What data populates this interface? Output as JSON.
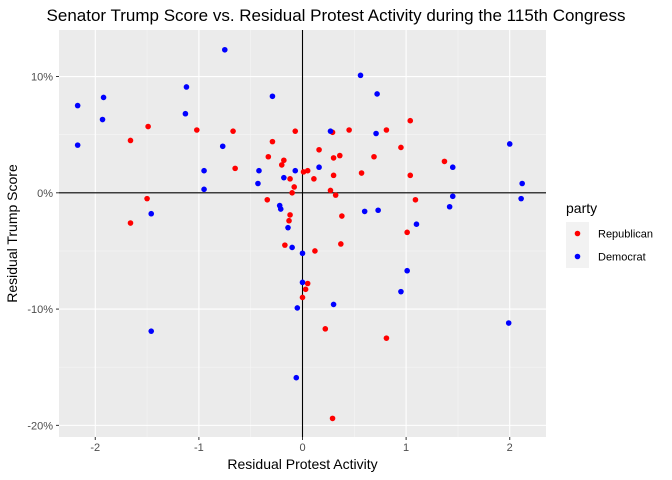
{
  "colors": {
    "panel_bg": "#ebebeb",
    "grid_major": "#ffffff",
    "grid_minor": "#f5f5f5",
    "ref_line": "#000000",
    "republican": "#ff0000",
    "democrat": "#0000ff",
    "legend_key_bg": "#f2f2f2"
  },
  "chart_data": {
    "type": "scatter",
    "title": "Senator Trump Score vs. Residual Protest Activity during the 115th Congress",
    "xlabel": "Residual Protest Activity",
    "ylabel": "Residual Trump Score",
    "xlim": [
      -2.35,
      2.35
    ],
    "ylim": [
      -0.21,
      0.14
    ],
    "x_ticks": [
      -2,
      -1,
      0,
      1,
      2
    ],
    "x_tick_labels": [
      "-2",
      "-1",
      "0",
      "1",
      "2"
    ],
    "y_ticks": [
      -0.2,
      -0.1,
      0,
      0.1
    ],
    "y_tick_labels": [
      "-20%",
      "-10%",
      "0%",
      "10%"
    ],
    "grid": true,
    "reference_lines": {
      "x": 0,
      "y": 0
    },
    "legend": {
      "title": "party",
      "placement": "right"
    },
    "series": [
      {
        "name": "Republican",
        "color": "#ff0000",
        "points": [
          [
            -1.66,
            0.045
          ],
          [
            -1.49,
            0.057
          ],
          [
            -1.5,
            -0.005
          ],
          [
            -1.66,
            -0.026
          ],
          [
            -1.02,
            0.054
          ],
          [
            -0.67,
            0.053
          ],
          [
            -0.65,
            0.021
          ],
          [
            -0.33,
            0.031
          ],
          [
            -0.29,
            0.044
          ],
          [
            -0.34,
            -0.006
          ],
          [
            -0.18,
            0.028
          ],
          [
            -0.2,
            0.024
          ],
          [
            -0.17,
            -0.045
          ],
          [
            -0.12,
            0.012
          ],
          [
            -0.1,
            0.0
          ],
          [
            -0.12,
            -0.019
          ],
          [
            -0.08,
            0.005
          ],
          [
            -0.07,
            0.053
          ],
          [
            -0.13,
            -0.024
          ],
          [
            0.01,
            0.018
          ],
          [
            0.05,
            0.019
          ],
          [
            0.11,
            0.012
          ],
          [
            0.16,
            0.037
          ],
          [
            0.29,
            0.052
          ],
          [
            0.3,
            0.03
          ],
          [
            0.36,
            0.032
          ],
          [
            0.45,
            0.054
          ],
          [
            0.3,
            0.015
          ],
          [
            0.27,
            0.002
          ],
          [
            0.32,
            -0.002
          ],
          [
            0.38,
            -0.02
          ],
          [
            0.37,
            -0.044
          ],
          [
            0.12,
            -0.05
          ],
          [
            0.57,
            0.017
          ],
          [
            0.69,
            0.031
          ],
          [
            0.81,
            0.054
          ],
          [
            0.95,
            0.039
          ],
          [
            1.04,
            0.062
          ],
          [
            1.04,
            0.015
          ],
          [
            1.09,
            -0.006
          ],
          [
            1.01,
            -0.034
          ],
          [
            1.37,
            0.027
          ],
          [
            0.03,
            -0.083
          ],
          [
            0.05,
            -0.078
          ],
          [
            0.0,
            -0.09
          ],
          [
            0.22,
            -0.117
          ],
          [
            0.81,
            -0.125
          ],
          [
            0.29,
            -0.194
          ]
        ]
      },
      {
        "name": "Democrat",
        "color": "#0000ff",
        "points": [
          [
            -2.17,
            0.075
          ],
          [
            -1.92,
            0.082
          ],
          [
            -1.93,
            0.063
          ],
          [
            -2.17,
            0.041
          ],
          [
            -1.12,
            0.091
          ],
          [
            -1.13,
            0.068
          ],
          [
            -0.75,
            0.123
          ],
          [
            -0.77,
            0.04
          ],
          [
            -0.95,
            0.019
          ],
          [
            -0.95,
            0.003
          ],
          [
            -0.42,
            0.019
          ],
          [
            -0.43,
            0.008
          ],
          [
            -0.29,
            0.083
          ],
          [
            -0.18,
            0.013
          ],
          [
            -0.22,
            -0.011
          ],
          [
            -0.21,
            -0.014
          ],
          [
            -0.14,
            -0.03
          ],
          [
            -0.1,
            -0.047
          ],
          [
            -0.07,
            0.019
          ],
          [
            0.0,
            -0.052
          ],
          [
            0.27,
            0.053
          ],
          [
            0.16,
            0.022
          ],
          [
            0.56,
            0.101
          ],
          [
            0.72,
            0.085
          ],
          [
            0.71,
            0.051
          ],
          [
            0.6,
            -0.016
          ],
          [
            0.73,
            -0.015
          ],
          [
            1.1,
            -0.027
          ],
          [
            1.42,
            -0.012
          ],
          [
            1.45,
            0.022
          ],
          [
            1.45,
            -0.003
          ],
          [
            2.0,
            0.042
          ],
          [
            2.12,
            0.008
          ],
          [
            2.11,
            -0.005
          ],
          [
            0.95,
            -0.085
          ],
          [
            1.01,
            -0.067
          ],
          [
            1.99,
            -0.112
          ],
          [
            0.3,
            -0.096
          ],
          [
            -0.05,
            -0.099
          ],
          [
            0.0,
            -0.077
          ],
          [
            -1.46,
            -0.018
          ],
          [
            -1.46,
            -0.119
          ],
          [
            -0.06,
            -0.159
          ]
        ]
      }
    ]
  }
}
